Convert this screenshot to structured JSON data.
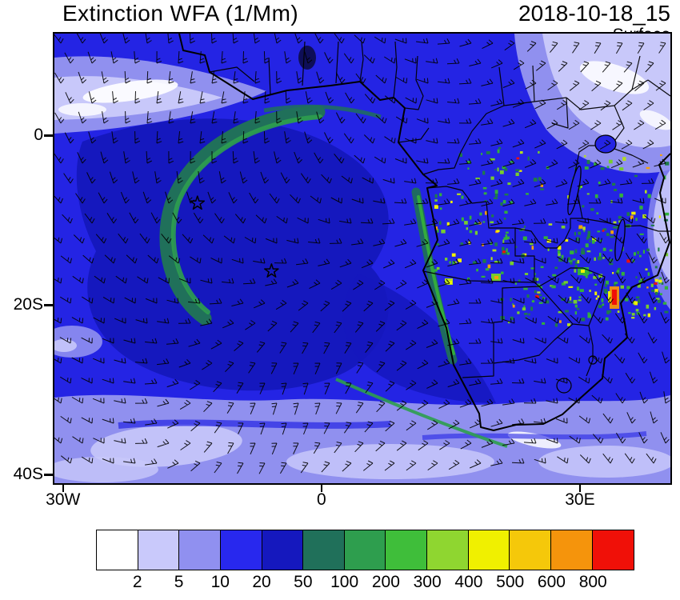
{
  "header": {
    "title": "Extinction WFA (1/Mm)",
    "datetime": "2018-10-18_15",
    "level": "Surface"
  },
  "map": {
    "extent": {
      "lon_min": -31,
      "lon_max": 40.5,
      "lat_min": -41,
      "lat_max": 12
    },
    "x_ticks": [
      {
        "label": "30W",
        "lon": -30
      },
      {
        "label": "0",
        "lon": 0
      },
      {
        "label": "30E",
        "lon": 30
      }
    ],
    "y_ticks": [
      {
        "label": "0",
        "lat": 0
      },
      {
        "label": "20S",
        "lat": -20
      },
      {
        "label": "40S",
        "lat": -40
      }
    ],
    "markers": [
      {
        "type": "star",
        "lon": -14.4,
        "lat": -8.0
      },
      {
        "type": "star",
        "lon": -5.8,
        "lat": -16.0
      }
    ]
  },
  "colorbar": {
    "colors": [
      "#FFFFFF",
      "#C9C9FB",
      "#9090F0",
      "#2828EE",
      "#1518BE",
      "#20705A",
      "#2E9E4E",
      "#3FBE3A",
      "#8FD630",
      "#F0F000",
      "#F5C80A",
      "#F5940C",
      "#F01008"
    ],
    "labels": [
      "2",
      "5",
      "10",
      "20",
      "50",
      "100",
      "200",
      "300",
      "400",
      "500",
      "600",
      "800"
    ]
  },
  "chart_data": {
    "type": "heatmap",
    "title": "Extinction WFA (1/Mm)",
    "timestamp": "2018-10-18_15",
    "level": "Surface",
    "region": "Southern Africa and South Atlantic",
    "lon_range": [
      -31,
      40.5
    ],
    "lat_range": [
      -41,
      12
    ],
    "colorbar_bin_edges": [
      2,
      5,
      10,
      20,
      50,
      100,
      200,
      300,
      400,
      500,
      600,
      800
    ],
    "colorbar_colors": [
      "#FFFFFF",
      "#C9C9FB",
      "#9090F0",
      "#2828EE",
      "#1518BE",
      "#20705A",
      "#2E9E4E",
      "#3FBE3A",
      "#8FD630",
      "#F0F000",
      "#F5C80A",
      "#F5940C",
      "#F01008"
    ],
    "overlay": "surface wind barbs",
    "features": [
      "broad 10-50 1/Mm extinction over tropical South Atlantic",
      "smoke crescent 50-200 1/Mm arcing offshore of Angola",
      "biomass-burning hotspots 100-800+ 1/Mm over Angola, Zambia, Tanzania, Mozambique",
      "clean air (<5 1/Mm) over Horn of Africa and Southern Ocean edge"
    ],
    "markers": [
      {
        "type": "star",
        "lon": -14.4,
        "lat": -8.0
      },
      {
        "type": "star",
        "lon": -5.8,
        "lat": -16.0
      }
    ]
  }
}
